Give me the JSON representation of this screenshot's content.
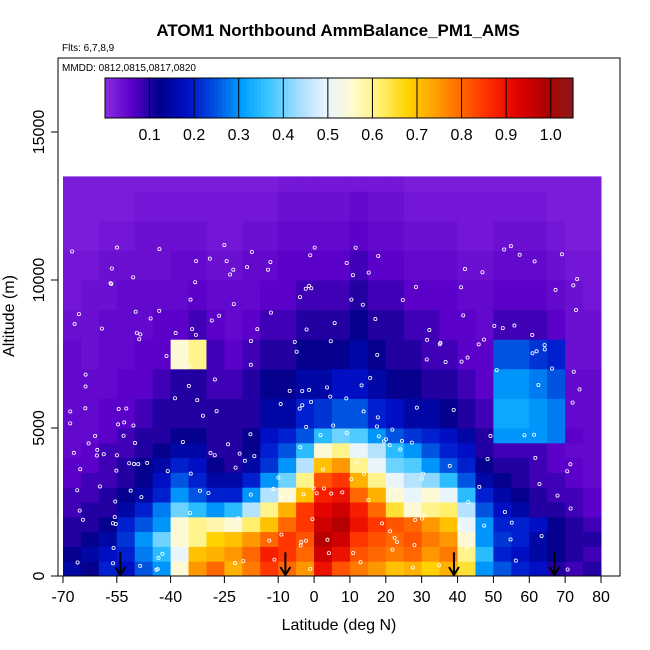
{
  "chart_data": {
    "type": "heatmap",
    "title": "ATOM1 Northbound AmmBalance_PM1_AMS",
    "flights_label": "Flts: 6,7,8,9",
    "dates_label": "MMDD: 0812,0815,0817,0820",
    "xlabel": "Latitude (deg N)",
    "ylabel": "Altitude (m)",
    "xlim": [
      -70,
      80
    ],
    "ylim": [
      0,
      17500
    ],
    "x_ticks": [
      -70,
      -55,
      -40,
      -25,
      -10,
      0,
      10,
      20,
      30,
      40,
      50,
      60,
      70,
      80
    ],
    "x_tick_labels": [
      "-70",
      "-55",
      "-40",
      "-25",
      "-10",
      "0",
      "10",
      "20",
      "30",
      "40",
      "50",
      "60",
      "70",
      "80"
    ],
    "y_ticks": [
      0,
      5000,
      10000,
      15000
    ],
    "y_tick_labels": [
      "0",
      "5000",
      "10000",
      "15000"
    ],
    "colorbar": {
      "range": [
        0,
        1.05
      ],
      "ticks": [
        0.1,
        0.2,
        0.3,
        0.4,
        0.5,
        0.6,
        0.7,
        0.8,
        0.9,
        1.0
      ],
      "tick_labels": [
        "0.1",
        "0.2",
        "0.3",
        "0.4",
        "0.5",
        "0.6",
        "0.7",
        "0.8",
        "0.9",
        "1.0"
      ],
      "colors": [
        "#8a2be2",
        "#5a00c8",
        "#00008b",
        "#0010c8",
        "#0050e0",
        "#00a0ff",
        "#40c8ff",
        "#a0dcff",
        "#e8f4ff",
        "#fffad0",
        "#fff070",
        "#ffd200",
        "#ffa000",
        "#ff6400",
        "#ff2800",
        "#e00000",
        "#b00000",
        "#8b1a1a"
      ]
    },
    "profile_arrows_latitude": [
      -54,
      -8,
      39,
      67
    ],
    "approx_field": {
      "description_levels_m": [
        0,
        500,
        1000,
        1500,
        2000,
        2500,
        3000,
        3500,
        4000,
        4500,
        5000,
        6000,
        7000,
        8000,
        9000,
        10000,
        11000,
        12000,
        13000
      ],
      "latitude_bins": [
        -70,
        -65,
        -60,
        -55,
        -50,
        -45,
        -40,
        -35,
        -30,
        -25,
        -20,
        -15,
        -10,
        -5,
        0,
        5,
        10,
        15,
        20,
        25,
        30,
        35,
        40,
        45,
        50,
        55,
        60,
        65,
        70,
        75
      ],
      "values": [
        [
          0.15,
          0.12,
          0.2,
          0.18,
          0.25,
          0.3,
          0.55,
          0.75,
          0.8,
          0.72,
          0.78,
          0.85,
          0.8,
          0.75,
          0.9,
          0.82,
          0.78,
          0.75,
          0.7,
          0.72,
          0.68,
          0.72,
          0.65,
          0.3,
          0.25,
          0.2,
          0.18,
          0.1,
          0.08,
          0.1
        ],
        [
          0.12,
          0.15,
          0.18,
          0.2,
          0.28,
          0.35,
          0.5,
          0.7,
          0.72,
          0.75,
          0.8,
          0.88,
          0.85,
          0.8,
          0.95,
          0.9,
          0.82,
          0.8,
          0.78,
          0.8,
          0.75,
          0.78,
          0.6,
          0.35,
          0.2,
          0.18,
          0.15,
          0.12,
          0.1,
          0.08
        ],
        [
          0.1,
          0.12,
          0.15,
          0.22,
          0.3,
          0.4,
          0.55,
          0.6,
          0.68,
          0.7,
          0.75,
          0.8,
          0.85,
          0.82,
          0.98,
          0.95,
          0.85,
          0.82,
          0.8,
          0.82,
          0.78,
          0.75,
          0.55,
          0.3,
          0.22,
          0.2,
          0.15,
          0.12,
          0.1,
          0.1
        ],
        [
          0.1,
          0.1,
          0.12,
          0.2,
          0.25,
          0.3,
          0.55,
          0.6,
          0.58,
          0.55,
          0.62,
          0.7,
          0.8,
          0.85,
          0.95,
          0.98,
          0.9,
          0.85,
          0.82,
          0.8,
          0.75,
          0.7,
          0.5,
          0.3,
          0.2,
          0.2,
          0.18,
          0.12,
          0.1,
          0.08
        ],
        [
          0.08,
          0.1,
          0.1,
          0.15,
          0.2,
          0.28,
          0.4,
          0.35,
          0.3,
          0.35,
          0.45,
          0.6,
          0.72,
          0.85,
          0.92,
          0.95,
          0.88,
          0.8,
          0.65,
          0.55,
          0.6,
          0.62,
          0.45,
          0.25,
          0.18,
          0.15,
          0.1,
          0.1,
          0.08,
          0.06
        ],
        [
          0.08,
          0.08,
          0.1,
          0.12,
          0.15,
          0.2,
          0.3,
          0.25,
          0.2,
          0.2,
          0.3,
          0.45,
          0.55,
          0.7,
          0.88,
          0.9,
          0.8,
          0.72,
          0.55,
          0.5,
          0.55,
          0.5,
          0.35,
          0.2,
          0.15,
          0.12,
          0.1,
          0.08,
          0.08,
          0.06
        ],
        [
          0.06,
          0.08,
          0.08,
          0.1,
          0.12,
          0.18,
          0.25,
          0.2,
          0.15,
          0.15,
          0.2,
          0.3,
          0.4,
          0.6,
          0.82,
          0.85,
          0.72,
          0.6,
          0.5,
          0.45,
          0.42,
          0.35,
          0.25,
          0.15,
          0.12,
          0.1,
          0.08,
          0.08,
          0.06,
          0.05
        ],
        [
          0.06,
          0.06,
          0.08,
          0.1,
          0.12,
          0.15,
          0.2,
          0.18,
          0.12,
          0.1,
          0.15,
          0.22,
          0.3,
          0.45,
          0.7,
          0.75,
          0.6,
          0.5,
          0.4,
          0.38,
          0.3,
          0.25,
          0.2,
          0.12,
          0.1,
          0.1,
          0.08,
          0.06,
          0.06,
          0.05
        ],
        [
          0.05,
          0.06,
          0.08,
          0.08,
          0.1,
          0.12,
          0.15,
          0.15,
          0.1,
          0.1,
          0.12,
          0.2,
          0.25,
          0.35,
          0.55,
          0.6,
          0.5,
          0.45,
          0.35,
          0.3,
          0.25,
          0.2,
          0.18,
          0.1,
          0.08,
          0.08,
          0.08,
          0.06,
          0.05,
          0.05
        ],
        [
          0.05,
          0.05,
          0.06,
          0.08,
          0.1,
          0.1,
          0.12,
          0.12,
          0.1,
          0.1,
          0.12,
          0.18,
          0.2,
          0.25,
          0.35,
          0.4,
          0.38,
          0.3,
          0.25,
          0.22,
          0.2,
          0.18,
          0.15,
          0.1,
          0.3,
          0.3,
          0.3,
          0.28,
          0.06,
          0.05
        ],
        [
          0.05,
          0.05,
          0.06,
          0.06,
          0.08,
          0.1,
          0.1,
          0.1,
          0.1,
          0.1,
          0.1,
          0.15,
          0.15,
          0.2,
          0.22,
          0.25,
          0.25,
          0.2,
          0.18,
          0.15,
          0.15,
          0.12,
          0.1,
          0.08,
          0.32,
          0.32,
          0.3,
          0.28,
          0.05,
          0.05
        ],
        [
          0.05,
          0.05,
          0.05,
          0.06,
          0.06,
          0.08,
          0.1,
          0.1,
          0.08,
          0.08,
          0.1,
          0.12,
          0.12,
          0.15,
          0.15,
          0.18,
          0.18,
          0.15,
          0.12,
          0.12,
          0.1,
          0.1,
          0.08,
          0.06,
          0.3,
          0.3,
          0.28,
          0.25,
          0.05,
          0.05
        ],
        [
          0.05,
          0.04,
          0.05,
          0.05,
          0.06,
          0.06,
          0.55,
          0.6,
          0.08,
          0.06,
          0.08,
          0.1,
          0.1,
          0.12,
          0.12,
          0.12,
          0.15,
          0.12,
          0.1,
          0.1,
          0.08,
          0.08,
          0.06,
          0.06,
          0.25,
          0.25,
          0.22,
          0.2,
          0.04,
          0.04
        ],
        [
          0.04,
          0.04,
          0.05,
          0.05,
          0.05,
          0.06,
          0.06,
          0.08,
          0.06,
          0.05,
          0.06,
          0.08,
          0.08,
          0.1,
          0.1,
          0.1,
          0.12,
          0.1,
          0.1,
          0.08,
          0.08,
          0.06,
          0.06,
          0.05,
          0.08,
          0.08,
          0.08,
          0.06,
          0.04,
          0.04
        ],
        [
          0.03,
          0.04,
          0.04,
          0.05,
          0.05,
          0.05,
          0.05,
          0.06,
          0.05,
          0.05,
          0.05,
          0.06,
          0.06,
          0.08,
          0.08,
          0.08,
          0.1,
          0.08,
          0.08,
          0.06,
          0.06,
          0.06,
          0.05,
          0.05,
          0.06,
          0.06,
          0.06,
          0.05,
          0.04,
          0.03
        ],
        [
          0.03,
          0.03,
          0.04,
          0.04,
          0.04,
          0.04,
          0.05,
          0.05,
          0.04,
          0.04,
          0.05,
          0.05,
          0.06,
          0.06,
          0.06,
          0.06,
          0.08,
          0.06,
          0.06,
          0.05,
          0.05,
          0.05,
          0.04,
          0.04,
          0.05,
          0.05,
          0.05,
          0.04,
          0.03,
          0.03
        ],
        [
          0.02,
          0.02,
          0.03,
          0.03,
          0.04,
          0.04,
          0.04,
          0.04,
          0.03,
          0.03,
          0.04,
          0.04,
          0.05,
          0.05,
          0.05,
          0.05,
          0.06,
          0.05,
          0.05,
          0.04,
          0.04,
          0.04,
          0.03,
          0.03,
          0.04,
          0.04,
          0.04,
          0.03,
          0.02,
          0.02
        ],
        [
          0.02,
          0.02,
          0.02,
          0.02,
          0.03,
          0.03,
          0.03,
          0.03,
          0.03,
          0.03,
          0.03,
          0.03,
          0.04,
          0.04,
          0.04,
          0.04,
          0.05,
          0.04,
          0.04,
          0.03,
          0.03,
          0.03,
          0.03,
          0.03,
          0.03,
          0.03,
          0.03,
          0.02,
          0.02,
          0.02
        ],
        [
          0.02,
          0.02,
          0.02,
          0.02,
          0.02,
          0.02,
          0.02,
          0.02,
          0.02,
          0.02,
          0.02,
          0.02,
          0.03,
          0.03,
          0.03,
          0.03,
          0.03,
          0.03,
          0.03,
          0.02,
          0.02,
          0.02,
          0.02,
          0.02,
          0.02,
          0.02,
          0.02,
          0.02,
          0.02,
          0.02
        ]
      ]
    }
  }
}
